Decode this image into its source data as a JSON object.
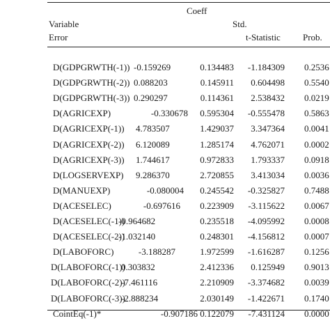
{
  "header": {
    "coeff": "Coeff",
    "variable": "Variable",
    "std": "Std.",
    "error": "Error",
    "t_statistic": "t-Statistic",
    "prob": "Prob."
  },
  "rows": [
    {
      "var": "D(GDPGRWTH(-1))",
      "coef": "-0.159269",
      "se": "0.134483",
      "t": "-1.184309",
      "p": "0.2536"
    },
    {
      "var": "D(GDPGRWTH(-2))",
      "coef": "0.088203",
      "se": "0.145911",
      "t": "0.604498",
      "p": "0.5540"
    },
    {
      "var": "D(GDPGRWTH(-3))",
      "coef": "0.290297",
      "se": "0.114361",
      "t": "2.538432",
      "p": "0.0219"
    },
    {
      "var": "D(AGRICEXP)",
      "coef": "-0.330678",
      "se": "0.595304",
      "t": "-0.555478",
      "p": "0.5863"
    },
    {
      "var": "D(AGRICEXP(-1))",
      "coef": "4.783507",
      "se": "1.429037",
      "t": "3.347364",
      "p": "0.0041"
    },
    {
      "var": "D(AGRICEXP(-2))",
      "coef": "6.120089",
      "se": "1.285174",
      "t": "4.762071",
      "p": "0.0002"
    },
    {
      "var": "D(AGRICEXP(-3))",
      "coef": "1.744617",
      "se": "0.972833",
      "t": "1.793337",
      "p": "0.0918"
    },
    {
      "var": "D(LOGSERVEXP)",
      "coef": "9.286370",
      "se": "2.720855",
      "t": "3.413034",
      "p": "0.0036"
    },
    {
      "var": "D(MANUEXP)",
      "coef": "-0.080004",
      "se": "0.245542",
      "t": "-0.325827",
      "p": "0.7488"
    },
    {
      "var": "D(ACESELEC)",
      "coef": "-0.697616",
      "se": "0.223909",
      "t": "-3.115622",
      "p": "0.0067"
    },
    {
      "var": "D(ACESELEC(-1))",
      "coef": "-0.964682",
      "se": "0.235518",
      "t": "-4.095992",
      "p": "0.0008"
    },
    {
      "var": "D(ACESELEC(-2))",
      "coef": "-1.032140",
      "se": "0.248301",
      "t": "-4.156812",
      "p": "0.0007"
    },
    {
      "var": "D(LABOFORC)",
      "coef": "-3.188287",
      "se": "1.972599",
      "t": "-1.616287",
      "p": "0.1256"
    },
    {
      "var": "D(LABOFORC(-1))",
      "coef": "0.303832",
      "se": "2.412336",
      "t": "0.125949",
      "p": "0.9013"
    },
    {
      "var": "D(LABOFORC(-2))",
      "coef": "-7.461116",
      "se": "2.210909",
      "t": "-3.374682",
      "p": "0.0039"
    },
    {
      "var": "D(LABOFORC(-3))",
      "coef": "-2.888234",
      "se": "2.030149",
      "t": "-1.422671",
      "p": "0.1740"
    },
    {
      "var": "CointEq(-1)*",
      "coef": "-0.907186",
      "se": "0.122079",
      "t": "-7.431124",
      "p": "0.0000"
    }
  ]
}
